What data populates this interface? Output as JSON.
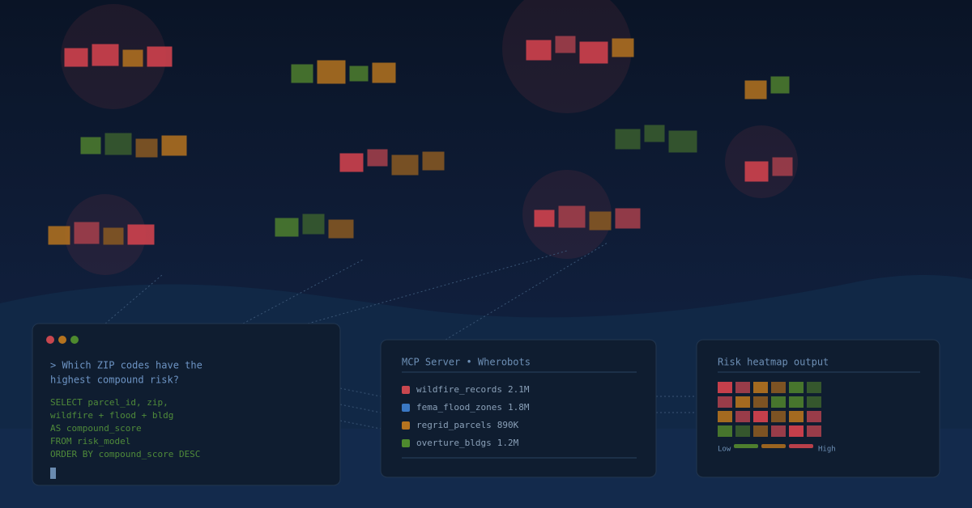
{
  "terminal": {
    "question": [
      "> Which ZIP codes have the",
      "highest compound risk?"
    ],
    "sql": [
      "SELECT parcel_id, zip,",
      "wildfire + flood + bldg",
      "AS compound_score",
      "FROM risk_model",
      "ORDER BY compound_score DESC"
    ]
  },
  "mcp": {
    "title": "MCP Server • Wherobots",
    "items": [
      {
        "name": "wildfire_records",
        "count": "2.1M"
      },
      {
        "name": "fema_flood_zones",
        "count": "1.8M"
      },
      {
        "name": "regrid_parcels",
        "count": "890K"
      },
      {
        "name": "overture_bldgs",
        "count": "1.2M"
      }
    ]
  },
  "heatmap": {
    "title": "Risk heatmap output",
    "low": "Low",
    "high": "High"
  }
}
